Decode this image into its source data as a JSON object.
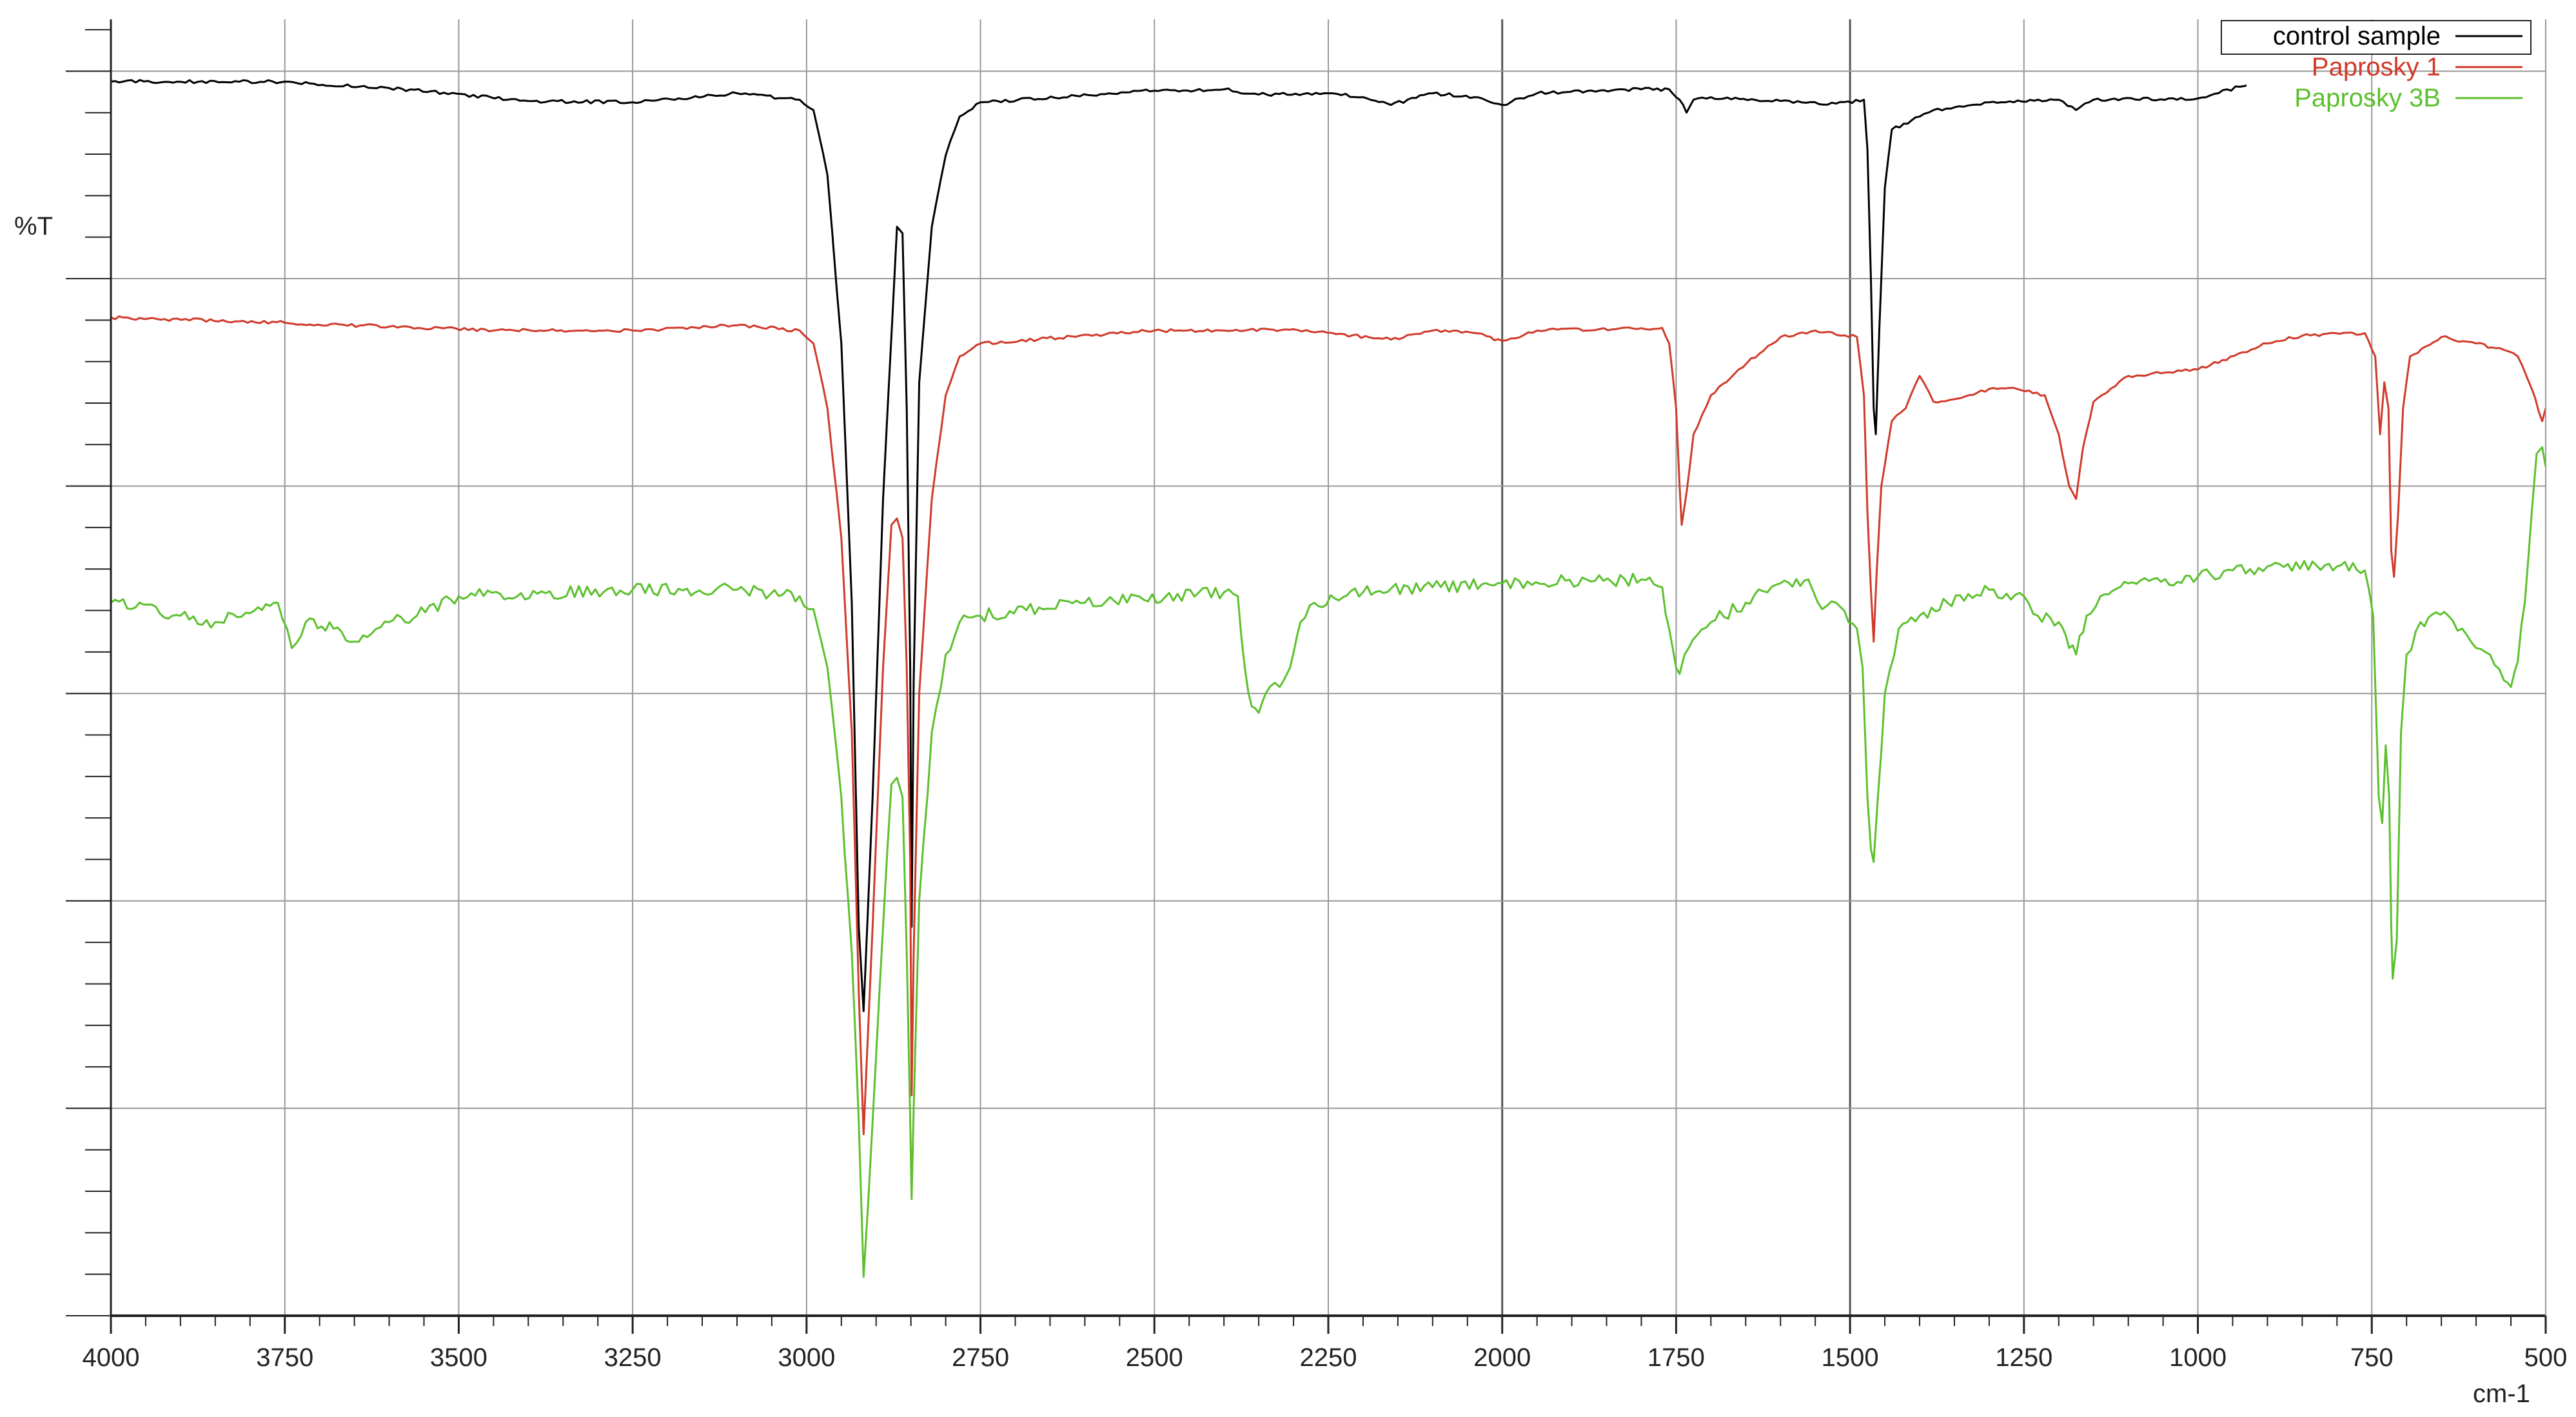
{
  "chart_data": {
    "type": "line",
    "title": "",
    "xlabel": "cm-1",
    "ylabel": "%T",
    "x_reversed": true,
    "xlim": [
      4000,
      500
    ],
    "ylim": [
      0,
      100
    ],
    "x_ticks": [
      4000,
      3750,
      3500,
      3250,
      3000,
      2750,
      2500,
      2250,
      2000,
      1750,
      1500,
      1250,
      1000,
      750,
      500
    ],
    "x_tick_labels": [
      "4000",
      "3750",
      "3500",
      "3250",
      "3000",
      "2750",
      "2500",
      "2250",
      "2000",
      "1750",
      "1500",
      "1250",
      "1000",
      "750",
      "500"
    ],
    "y_major_gridlines": [
      0,
      16,
      32,
      48,
      64,
      80,
      96
    ],
    "y_tick_labels_shown": false,
    "grid": true,
    "legend": {
      "position": "top-right"
    },
    "series": [
      {
        "name": "control sample",
        "color": "#000000",
        "points": [
          [
            4000,
            95.2
          ],
          [
            3750,
            95.2
          ],
          [
            3600,
            94.7
          ],
          [
            3400,
            93.7
          ],
          [
            3250,
            93.6
          ],
          [
            3100,
            94.3
          ],
          [
            3010,
            93.8
          ],
          [
            2990,
            93.0
          ],
          [
            2970,
            88.0
          ],
          [
            2950,
            75.0
          ],
          [
            2935,
            55.0
          ],
          [
            2925,
            30.0
          ],
          [
            2918,
            23.5
          ],
          [
            2905,
            40.0
          ],
          [
            2890,
            63.0
          ],
          [
            2870,
            84.0
          ],
          [
            2862,
            83.5
          ],
          [
            2856,
            70.0
          ],
          [
            2851,
            50.0
          ],
          [
            2849,
            30.0
          ],
          [
            2846,
            49.0
          ],
          [
            2838,
            72.0
          ],
          [
            2820,
            84.0
          ],
          [
            2800,
            89.5
          ],
          [
            2780,
            92.5
          ],
          [
            2750,
            93.6
          ],
          [
            2500,
            94.5
          ],
          [
            2400,
            94.6
          ],
          [
            2350,
            94.2
          ],
          [
            2250,
            94.3
          ],
          [
            2200,
            94.0
          ],
          [
            2160,
            93.4
          ],
          [
            2100,
            94.3
          ],
          [
            2040,
            94.0
          ],
          [
            2000,
            93.4
          ],
          [
            1950,
            94.3
          ],
          [
            1800,
            94.6
          ],
          [
            1760,
            94.6
          ],
          [
            1745,
            93.8
          ],
          [
            1735,
            92.8
          ],
          [
            1725,
            93.8
          ],
          [
            1700,
            94.0
          ],
          [
            1600,
            93.7
          ],
          [
            1520,
            93.5
          ],
          [
            1480,
            93.8
          ],
          [
            1475,
            90.0
          ],
          [
            1470,
            80.0
          ],
          [
            1466,
            70.0
          ],
          [
            1463,
            68.0
          ],
          [
            1458,
            76.0
          ],
          [
            1450,
            87.0
          ],
          [
            1440,
            91.5
          ],
          [
            1400,
            92.5
          ],
          [
            1380,
            93.0
          ],
          [
            1300,
            93.6
          ],
          [
            1200,
            93.8
          ],
          [
            1175,
            93.0
          ],
          [
            1150,
            93.8
          ],
          [
            1000,
            93.9
          ],
          [
            940,
            94.8
          ],
          [
            930,
            94.9
          ]
        ]
      },
      {
        "name": "Paprosky 1",
        "color": "#d03a2a",
        "points": [
          [
            4000,
            77.0
          ],
          [
            3750,
            76.6
          ],
          [
            3600,
            76.3
          ],
          [
            3450,
            76.0
          ],
          [
            3250,
            76.0
          ],
          [
            3100,
            76.4
          ],
          [
            3010,
            76.0
          ],
          [
            2990,
            75.0
          ],
          [
            2970,
            70.0
          ],
          [
            2950,
            60.0
          ],
          [
            2935,
            45.0
          ],
          [
            2925,
            25.0
          ],
          [
            2918,
            14.0
          ],
          [
            2905,
            30.0
          ],
          [
            2890,
            50.0
          ],
          [
            2878,
            61.0
          ],
          [
            2870,
            61.5
          ],
          [
            2862,
            60.0
          ],
          [
            2856,
            50.0
          ],
          [
            2851,
            35.0
          ],
          [
            2849,
            17.0
          ],
          [
            2846,
            28.0
          ],
          [
            2838,
            48.0
          ],
          [
            2820,
            63.0
          ],
          [
            2800,
            71.0
          ],
          [
            2780,
            74.0
          ],
          [
            2750,
            75.0
          ],
          [
            2500,
            76.0
          ],
          [
            2400,
            76.0
          ],
          [
            2300,
            76.1
          ],
          [
            2160,
            75.3
          ],
          [
            2100,
            76.0
          ],
          [
            2040,
            75.8
          ],
          [
            2000,
            75.2
          ],
          [
            1950,
            76.0
          ],
          [
            1770,
            76.2
          ],
          [
            1760,
            75.0
          ],
          [
            1750,
            70.0
          ],
          [
            1745,
            64.0
          ],
          [
            1742,
            61.0
          ],
          [
            1735,
            63.5
          ],
          [
            1725,
            68.0
          ],
          [
            1700,
            71.0
          ],
          [
            1660,
            73.0
          ],
          [
            1600,
            75.5
          ],
          [
            1550,
            76.0
          ],
          [
            1490,
            75.5
          ],
          [
            1480,
            71.0
          ],
          [
            1475,
            62.0
          ],
          [
            1470,
            56.0
          ],
          [
            1466,
            52.0
          ],
          [
            1462,
            57.0
          ],
          [
            1455,
            64.0
          ],
          [
            1440,
            69.0
          ],
          [
            1420,
            70.0
          ],
          [
            1400,
            72.5
          ],
          [
            1380,
            70.5
          ],
          [
            1340,
            70.8
          ],
          [
            1300,
            71.5
          ],
          [
            1260,
            71.5
          ],
          [
            1220,
            71.0
          ],
          [
            1200,
            68.0
          ],
          [
            1185,
            64.0
          ],
          [
            1175,
            63.0
          ],
          [
            1165,
            67.0
          ],
          [
            1150,
            70.5
          ],
          [
            1100,
            72.5
          ],
          [
            1000,
            73.0
          ],
          [
            900,
            75.0
          ],
          [
            850,
            75.6
          ],
          [
            760,
            75.8
          ],
          [
            745,
            74.0
          ],
          [
            738,
            68.0
          ],
          [
            732,
            72.0
          ],
          [
            726,
            70.0
          ],
          [
            722,
            59.0
          ],
          [
            718,
            57.0
          ],
          [
            712,
            62.0
          ],
          [
            705,
            70.0
          ],
          [
            695,
            74.0
          ],
          [
            650,
            75.5
          ],
          [
            600,
            75.0
          ],
          [
            560,
            74.5
          ],
          [
            540,
            74.0
          ],
          [
            520,
            71.5
          ],
          [
            505,
            69.0
          ],
          [
            500,
            70.0
          ]
        ]
      },
      {
        "name": "Paprosky 3B",
        "color": "#5cc02e",
        "points": [
          [
            4000,
            55.0
          ],
          [
            3900,
            54.0
          ],
          [
            3850,
            53.5
          ],
          [
            3800,
            54.2
          ],
          [
            3760,
            55.0
          ],
          [
            3740,
            51.5
          ],
          [
            3720,
            53.5
          ],
          [
            3680,
            53.0
          ],
          [
            3650,
            52.0
          ],
          [
            3600,
            53.5
          ],
          [
            3560,
            54.0
          ],
          [
            3500,
            55.5
          ],
          [
            3250,
            56.0
          ],
          [
            3100,
            56.0
          ],
          [
            3010,
            55.5
          ],
          [
            2990,
            54.5
          ],
          [
            2970,
            50.0
          ],
          [
            2950,
            40.0
          ],
          [
            2935,
            28.0
          ],
          [
            2925,
            15.0
          ],
          [
            2918,
            3.0
          ],
          [
            2905,
            15.0
          ],
          [
            2890,
            30.0
          ],
          [
            2878,
            41.0
          ],
          [
            2870,
            41.5
          ],
          [
            2862,
            40.0
          ],
          [
            2856,
            28.0
          ],
          [
            2851,
            15.0
          ],
          [
            2849,
            9.0
          ],
          [
            2846,
            16.0
          ],
          [
            2838,
            32.0
          ],
          [
            2820,
            45.0
          ],
          [
            2800,
            51.0
          ],
          [
            2780,
            53.5
          ],
          [
            2750,
            54.0
          ],
          [
            2600,
            55.0
          ],
          [
            2400,
            55.8
          ],
          [
            2380,
            55.5
          ],
          [
            2370,
            50.0
          ],
          [
            2360,
            47.0
          ],
          [
            2350,
            46.5
          ],
          [
            2340,
            48.0
          ],
          [
            2320,
            48.5
          ],
          [
            2305,
            50.0
          ],
          [
            2290,
            53.5
          ],
          [
            2270,
            55.0
          ],
          [
            2200,
            55.8
          ],
          [
            2100,
            56.2
          ],
          [
            2000,
            56.5
          ],
          [
            1800,
            56.8
          ],
          [
            1770,
            56.2
          ],
          [
            1760,
            53.0
          ],
          [
            1750,
            50.0
          ],
          [
            1745,
            49.5
          ],
          [
            1738,
            51.0
          ],
          [
            1720,
            52.5
          ],
          [
            1700,
            53.5
          ],
          [
            1650,
            55.0
          ],
          [
            1600,
            56.5
          ],
          [
            1560,
            56.8
          ],
          [
            1540,
            54.5
          ],
          [
            1520,
            55.0
          ],
          [
            1490,
            53.0
          ],
          [
            1482,
            50.0
          ],
          [
            1475,
            40.0
          ],
          [
            1470,
            36.0
          ],
          [
            1466,
            35.0
          ],
          [
            1460,
            40.0
          ],
          [
            1450,
            48.0
          ],
          [
            1430,
            53.0
          ],
          [
            1400,
            54.0
          ],
          [
            1360,
            55.0
          ],
          [
            1300,
            56.0
          ],
          [
            1250,
            55.5
          ],
          [
            1230,
            54.0
          ],
          [
            1200,
            53.5
          ],
          [
            1185,
            51.5
          ],
          [
            1175,
            51.0
          ],
          [
            1160,
            54.0
          ],
          [
            1140,
            55.5
          ],
          [
            1100,
            56.5
          ],
          [
            1000,
            57.0
          ],
          [
            950,
            57.5
          ],
          [
            900,
            57.8
          ],
          [
            800,
            57.8
          ],
          [
            760,
            57.5
          ],
          [
            748,
            54.0
          ],
          [
            740,
            40.0
          ],
          [
            735,
            38.0
          ],
          [
            730,
            44.0
          ],
          [
            725,
            40.0
          ],
          [
            722,
            30.0
          ],
          [
            720,
            26.0
          ],
          [
            714,
            29.0
          ],
          [
            708,
            45.0
          ],
          [
            700,
            51.0
          ],
          [
            680,
            53.5
          ],
          [
            640,
            54.0
          ],
          [
            620,
            53.0
          ],
          [
            600,
            51.5
          ],
          [
            580,
            51.0
          ],
          [
            560,
            49.0
          ],
          [
            550,
            48.5
          ],
          [
            540,
            50.5
          ],
          [
            530,
            55.0
          ],
          [
            520,
            62.0
          ],
          [
            513,
            66.5
          ],
          [
            505,
            67.0
          ],
          [
            500,
            65.5
          ]
        ]
      }
    ]
  }
}
